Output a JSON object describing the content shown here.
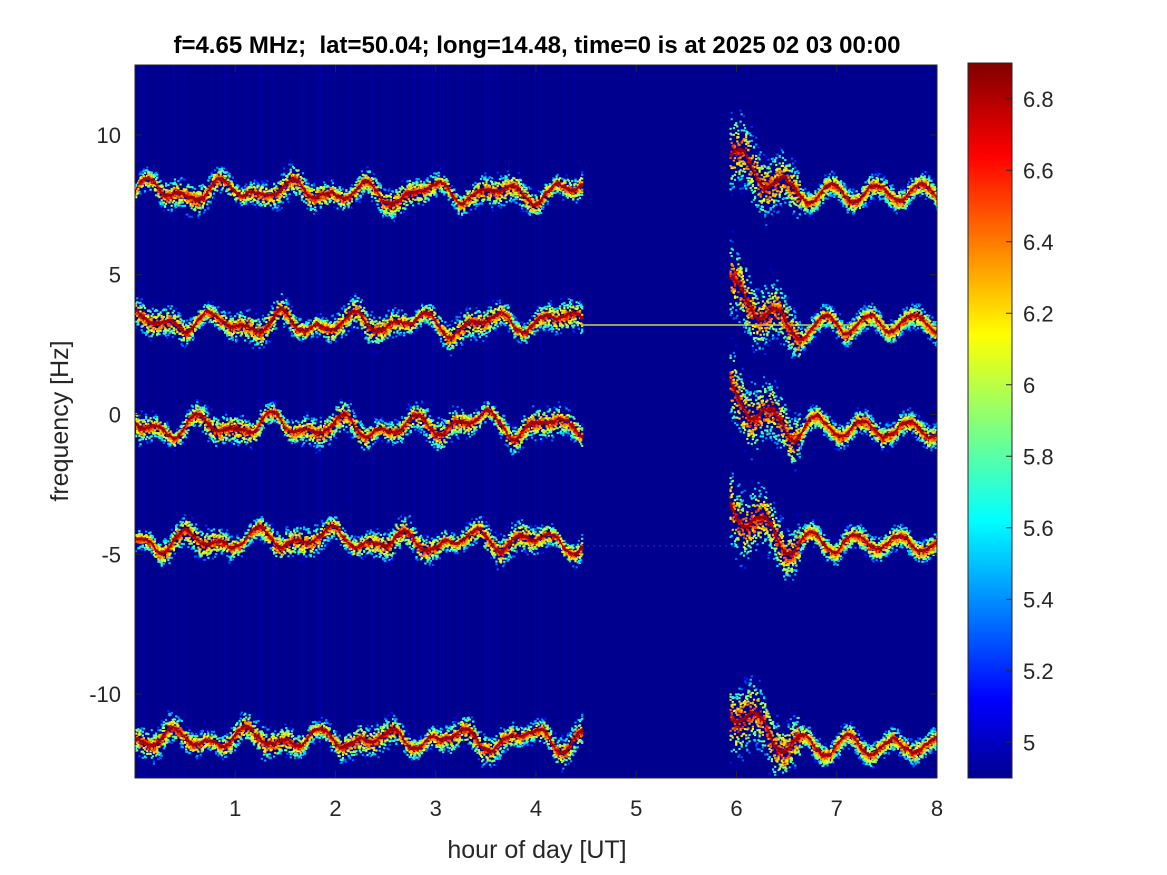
{
  "chart_data": {
    "type": "heatmap",
    "title": "f=4.65 MHz;  lat=50.04; long=14.48, time=0 is at 2025 02 03 00:00",
    "xlabel": "hour of day [UT]",
    "ylabel": "frequency [Hz]",
    "xlim": [
      0,
      8
    ],
    "ylim": [
      -13,
      12.5
    ],
    "xticks": [
      1,
      2,
      3,
      4,
      5,
      6,
      7,
      8
    ],
    "xtick_labels": [
      "1",
      "2",
      "3",
      "4",
      "5",
      "6",
      "7",
      "8"
    ],
    "yticks": [
      -10,
      -5,
      0,
      5,
      10
    ],
    "ytick_labels": [
      "-10",
      "-5",
      "0",
      "5",
      "10"
    ],
    "colorbar": {
      "range": [
        4.9,
        6.9
      ],
      "ticks": [
        5,
        5.2,
        5.4,
        5.6,
        5.8,
        6,
        6.2,
        6.4,
        6.6,
        6.8
      ],
      "tick_labels": [
        "5",
        "5.2",
        "5.4",
        "5.6",
        "5.8",
        "6",
        "6.2",
        "6.4",
        "6.6",
        "6.8"
      ],
      "colormap": "jet"
    },
    "background_value": 4.95,
    "traces": [
      {
        "name": "trace-1",
        "start_hour": 0.0,
        "end_hour": 4.45,
        "center_freq_hz": 8.0,
        "late_start_hour": 5.93,
        "late_freq_hz": 7.9,
        "peak_value": 6.9
      },
      {
        "name": "trace-2",
        "start_hour": 0.0,
        "end_hour": 4.45,
        "center_freq_hz": 3.3,
        "late_start_hour": 5.93,
        "late_freq_hz": 3.2,
        "peak_value": 6.9
      },
      {
        "name": "trace-3",
        "start_hour": 0.0,
        "end_hour": 4.45,
        "center_freq_hz": -0.4,
        "late_start_hour": 5.93,
        "late_freq_hz": -0.5,
        "peak_value": 6.9
      },
      {
        "name": "trace-4",
        "start_hour": 0.0,
        "end_hour": 4.45,
        "center_freq_hz": -4.5,
        "late_start_hour": 5.93,
        "late_freq_hz": -4.6,
        "peak_value": 6.9
      },
      {
        "name": "trace-5",
        "start_hour": 0.0,
        "end_hour": 4.45,
        "center_freq_hz": -11.6,
        "late_start_hour": 5.93,
        "late_freq_hz": -11.8,
        "peak_value": 6.9
      }
    ],
    "constant_line": {
      "start_hour": 4.45,
      "end_hour": 8.0,
      "freq_hz": 3.2
    },
    "faint_line": {
      "start_hour": 4.45,
      "end_hour": 6.0,
      "freq_hz": -4.7
    },
    "grid": false
  }
}
